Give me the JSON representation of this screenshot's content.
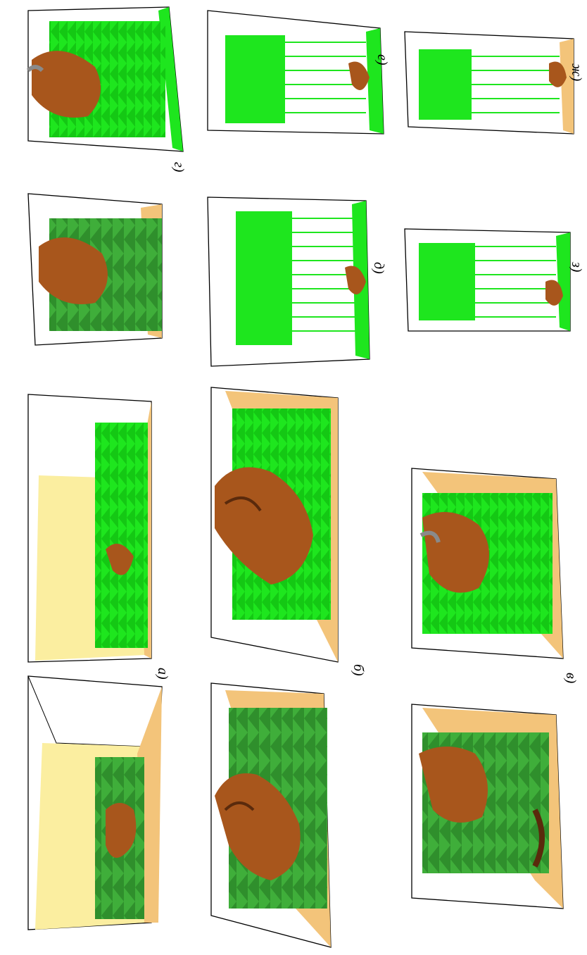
{
  "figure": {
    "orientation": "rotated 90 degrees clockwise",
    "panel_labels": {
      "a": "а)",
      "b": "б)",
      "v": "в)",
      "g": "г)",
      "d": "д)",
      "e": "е)",
      "zh": "ж)",
      "z": "з)"
    },
    "colors": {
      "tree_solid": "#3fae3a",
      "tree_bright": "#1ee61e",
      "fire_plume": "#a8561c",
      "fire_dark": "#5a2a0c",
      "ground_tan": "#f3c47a",
      "back_wall_yellow": "#fbeea0",
      "smoke_gray": "#8a8a8a"
    }
  }
}
